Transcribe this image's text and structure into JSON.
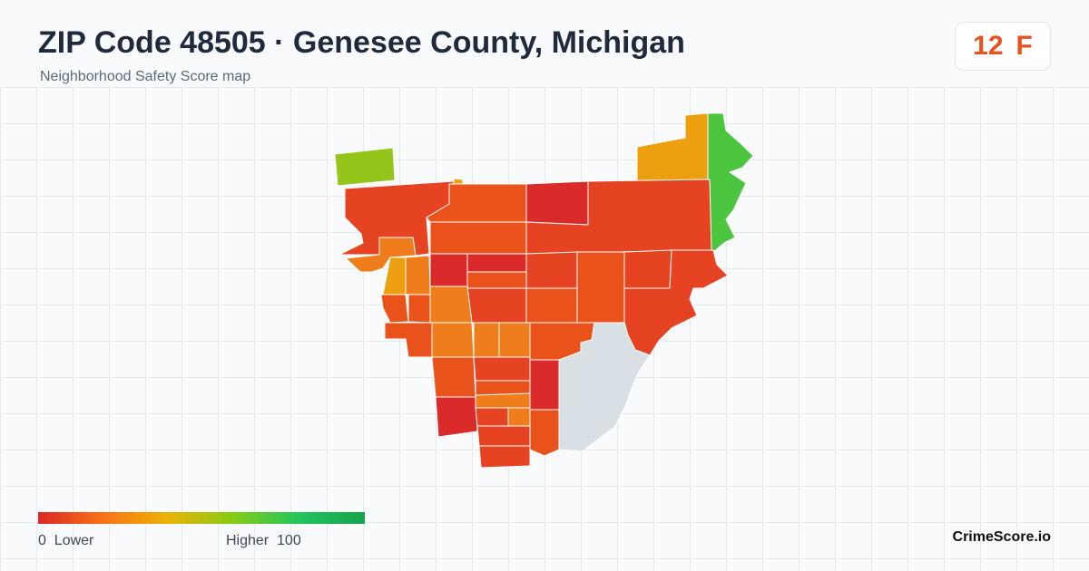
{
  "header": {
    "title": "ZIP Code 48505 · Genesee County, Michigan",
    "subtitle": "Neighborhood Safety Score map"
  },
  "score": {
    "value": "12",
    "grade": "F",
    "color": "#e8501d"
  },
  "legend": {
    "low_value": "0",
    "low_label": "Lower",
    "high_label": "Higher",
    "high_value": "100",
    "colors": [
      "#dc2626",
      "#f97316",
      "#eab308",
      "#84cc16",
      "#22c55e",
      "#16a34a"
    ]
  },
  "brand": {
    "name": "CrimeScore.io"
  },
  "map": {
    "colors": {
      "red": "#da2a29",
      "red_orange": "#e64322",
      "orange_dark": "#ea521c",
      "orange": "#f07d1c",
      "amber": "#eca00f",
      "yellow_green": "#93c51a",
      "green": "#4cc63f",
      "no_data": "#d8dfe5"
    }
  }
}
